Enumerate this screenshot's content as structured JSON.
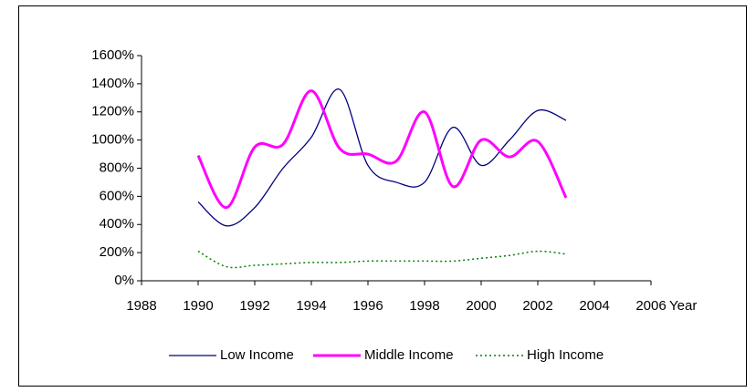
{
  "chart_data": {
    "type": "line",
    "x_label": "Year",
    "x": [
      1990,
      1991,
      1992,
      1993,
      1994,
      1995,
      1996,
      1997,
      1998,
      1999,
      2000,
      2001,
      2002,
      2003
    ],
    "series": [
      {
        "name": "Low Income",
        "color": "#000080",
        "dash": "solid",
        "width": 1.3,
        "values": [
          560,
          390,
          520,
          800,
          1020,
          1360,
          820,
          700,
          700,
          1090,
          820,
          1000,
          1210,
          1140
        ]
      },
      {
        "name": "Middle Income",
        "color": "#ff00ff",
        "dash": "solid",
        "width": 3,
        "values": [
          890,
          520,
          950,
          970,
          1350,
          940,
          900,
          850,
          1200,
          670,
          1000,
          880,
          990,
          590
        ]
      },
      {
        "name": "High Income",
        "color": "#008000",
        "dash": "dotted",
        "width": 1.5,
        "values": [
          210,
          100,
          110,
          120,
          130,
          130,
          140,
          140,
          140,
          140,
          160,
          180,
          210,
          190
        ]
      }
    ],
    "xlim": [
      1988,
      2006
    ],
    "xticks": [
      1988,
      1990,
      1992,
      1994,
      1996,
      1998,
      2000,
      2002,
      2004,
      2006
    ],
    "ylim": [
      0,
      1600
    ],
    "yticks": [
      {
        "value": 0,
        "label": "0%"
      },
      {
        "value": 200,
        "label": "200%"
      },
      {
        "value": 400,
        "label": "400%"
      },
      {
        "value": 600,
        "label": "600%"
      },
      {
        "value": 800,
        "label": "800%"
      },
      {
        "value": 1000,
        "label": "1000%"
      },
      {
        "value": 1200,
        "label": "1200%"
      },
      {
        "value": 1400,
        "label": "1400%"
      },
      {
        "value": 1600,
        "label": "1600%"
      }
    ],
    "smooth": true,
    "legend": "bottom"
  }
}
